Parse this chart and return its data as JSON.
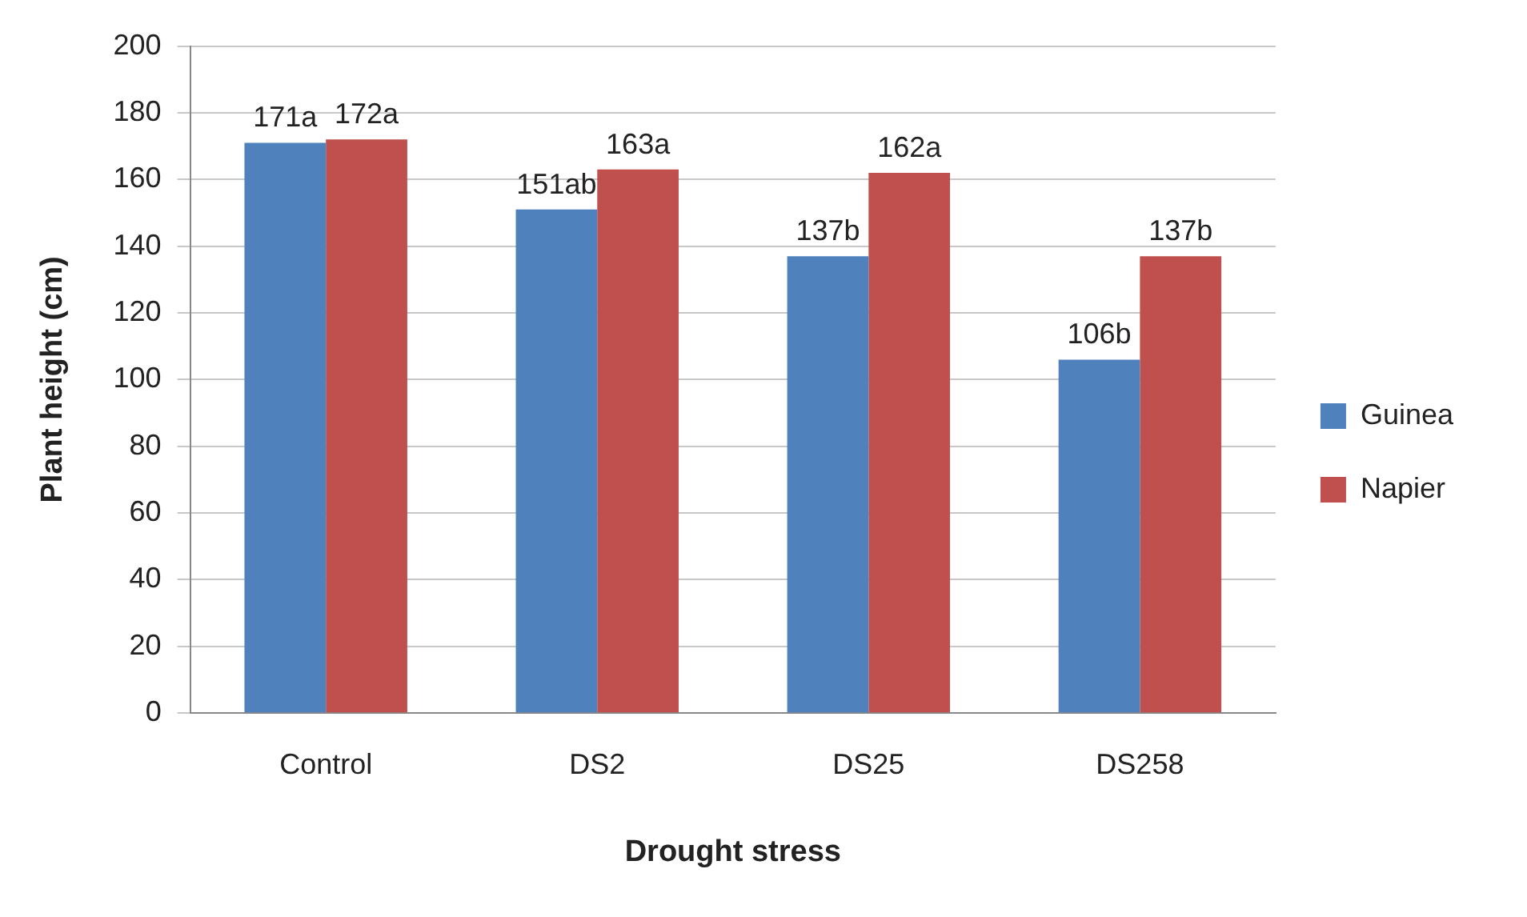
{
  "chart_data": {
    "type": "bar",
    "xlabel": "Drought stress",
    "ylabel": "Plant height (cm)",
    "categories": [
      "Control",
      "DS2",
      "DS25",
      "DS258"
    ],
    "series": [
      {
        "name": "Guinea",
        "color": "#4f81bd",
        "values": [
          171,
          151,
          137,
          106
        ],
        "value_labels": [
          "171a",
          "151ab",
          "137b",
          "106b"
        ]
      },
      {
        "name": "Napier",
        "color": "#c0504d",
        "values": [
          172,
          163,
          162,
          137
        ],
        "value_labels": [
          "172a",
          "163a",
          "162a",
          "137b"
        ]
      }
    ],
    "ylim": [
      0,
      200
    ],
    "yticks": [
      0,
      20,
      40,
      60,
      80,
      100,
      120,
      140,
      160,
      180,
      200
    ],
    "grid": "y",
    "legend": "right"
  }
}
